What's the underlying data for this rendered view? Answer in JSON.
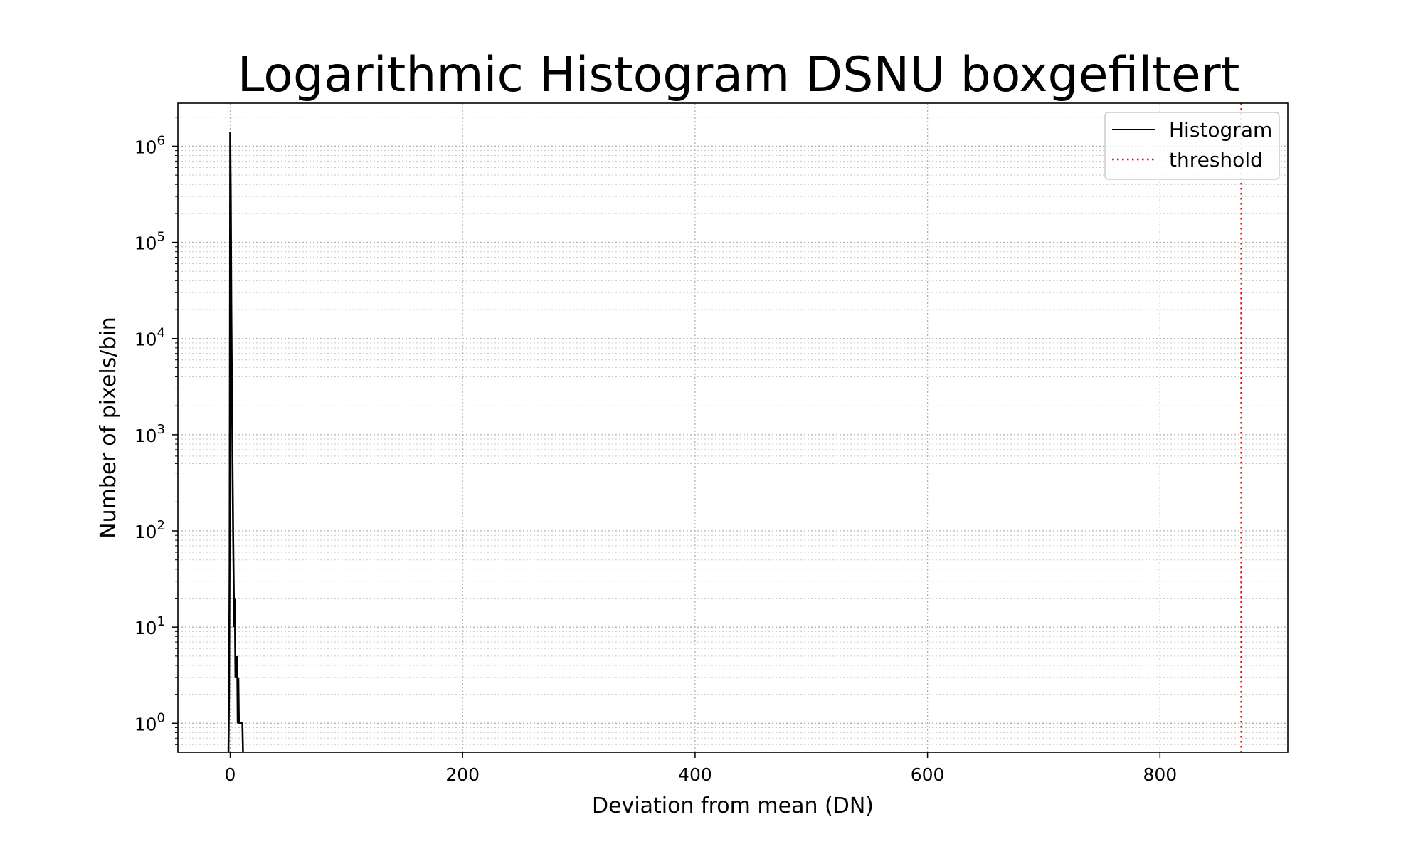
{
  "chart_data": {
    "type": "line",
    "title": "Logarithmic Histogram DSNU boxgefiltert",
    "xlabel": "Deviation from mean (DN)",
    "ylabel": "Number of pixels/bin",
    "xlim": [
      -45,
      910
    ],
    "ylim": [
      0.5,
      2800000
    ],
    "yscale": "log",
    "grid": true,
    "legend_position": "top-right",
    "x_ticks": [
      0,
      200,
      400,
      600,
      800
    ],
    "x_tick_labels": [
      "0",
      "200",
      "400",
      "600",
      "800"
    ],
    "y_ticks": [
      1,
      10,
      100,
      1000,
      10000,
      100000,
      1000000
    ],
    "y_tick_labels": [
      {
        "base": "10",
        "exp": "0"
      },
      {
        "base": "10",
        "exp": "1"
      },
      {
        "base": "10",
        "exp": "2"
      },
      {
        "base": "10",
        "exp": "3"
      },
      {
        "base": "10",
        "exp": "4"
      },
      {
        "base": "10",
        "exp": "5"
      },
      {
        "base": "10",
        "exp": "6"
      }
    ],
    "series": [
      {
        "name": "Histogram",
        "color": "#000000",
        "style": "solid",
        "x": [
          -1.5,
          -1,
          -0.5,
          0,
          0.5,
          1,
          1.5,
          2,
          2.5,
          3,
          3.5,
          4,
          4.5,
          5,
          5.5,
          6,
          6.5,
          7,
          7.5,
          8,
          9,
          10,
          10.5,
          11
        ],
        "y": [
          0.5,
          2,
          50,
          1400000,
          300000,
          20000,
          3000,
          500,
          100,
          30,
          10,
          20,
          3,
          5,
          3,
          5,
          1,
          3,
          1,
          1,
          1,
          1,
          1,
          0.5
        ]
      },
      {
        "name": "threshold",
        "color": "#ff0000",
        "style": "dotted",
        "x_value": 870
      }
    ]
  }
}
